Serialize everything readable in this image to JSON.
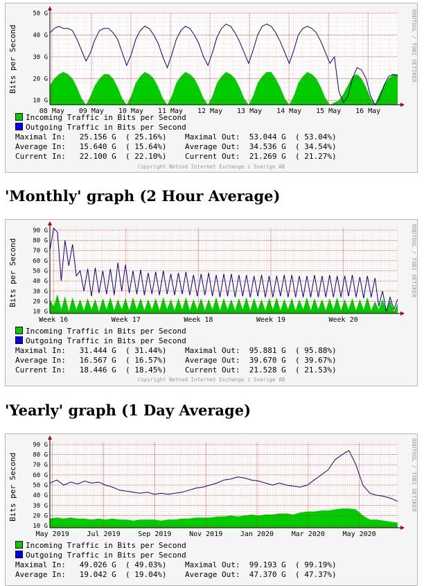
{
  "common": {
    "ylabel": "Bits per Second",
    "side_text": "RRDTOOL / TOBI OETIKER",
    "legend_in": "Incoming Traffic in Bits per Second",
    "legend_out": "Outgoing Traffic in Bits per Second",
    "copyright": "Copyright Netnod Internet Exchange i Sverige AB",
    "colors": {
      "in": "#00cc00",
      "out": "#0000ff",
      "grid": "#ff0000",
      "plot_bg": "#ffffff",
      "panel_bg": "#f5f5f5"
    }
  },
  "headings": {
    "monthly": "'Monthly' graph (2 Hour Average)",
    "yearly": "'Yearly' graph (1 Day Average)"
  },
  "graphs": [
    {
      "id": "weekly",
      "stats": [
        [
          "Maximal In:",
          "25.156 G",
          "( 25.16%)",
          "Maximal Out:",
          "53.044 G",
          "( 53.04%)"
        ],
        [
          "Average In:",
          "15.640 G",
          "( 15.64%)",
          "Average Out:",
          "34.536 G",
          "( 34.54%)"
        ],
        [
          "Current In:",
          "22.100 G",
          "( 22.10%)",
          "Current Out:",
          "21.269 G",
          "( 21.27%)"
        ]
      ]
    },
    {
      "id": "monthly",
      "stats": [
        [
          "Maximal In:",
          "31.444 G",
          "( 31.44%)",
          "Maximal Out:",
          "95.881 G",
          "( 95.88%)"
        ],
        [
          "Average In:",
          "16.567 G",
          "( 16.57%)",
          "Average Out:",
          "39.670 G",
          "( 39.67%)"
        ],
        [
          "Current In:",
          "18.446 G",
          "( 18.45%)",
          "Current Out:",
          "21.528 G",
          "( 21.53%)"
        ]
      ]
    },
    {
      "id": "yearly",
      "stats": [
        [
          "Maximal In:",
          "49.026 G",
          "( 49.03%)",
          "Maximal Out:",
          "99.193 G",
          "( 99.19%)"
        ],
        [
          "Average In:",
          "19.042 G",
          "( 19.04%)",
          "Average Out:",
          "47.370 G",
          "( 47.37%)"
        ]
      ]
    }
  ],
  "chart_data": [
    {
      "type": "area",
      "ylim": [
        8,
        50
      ],
      "yticks": [
        "10 G",
        "20 G",
        "30 G",
        "40 G",
        "50 G"
      ],
      "ytick_values": [
        10,
        20,
        30,
        40,
        50
      ],
      "x_ticks": [
        "08 May",
        "09 May",
        "10 May",
        "11 May",
        "12 May",
        "13 May",
        "14 May",
        "15 May",
        "16 May"
      ],
      "grid": true,
      "series": [
        {
          "name": "Incoming Traffic in Bits per Second",
          "kind": "area",
          "values": [
            17,
            20,
            22,
            23,
            22,
            20,
            16,
            11,
            8,
            12,
            17,
            20,
            22,
            22,
            20,
            16,
            11,
            8,
            12,
            18,
            21,
            23,
            22,
            20,
            16,
            11,
            8,
            12,
            18,
            21,
            23,
            22,
            20,
            16,
            11,
            8,
            12,
            18,
            21,
            23,
            22,
            20,
            16,
            11,
            8,
            12,
            18,
            21,
            23,
            23,
            20,
            16,
            11,
            8,
            12,
            18,
            21,
            23,
            22,
            20,
            16,
            11,
            8,
            9,
            10,
            13,
            17,
            21,
            22,
            20,
            16,
            11,
            8,
            13,
            17,
            20,
            22,
            22
          ]
        },
        {
          "name": "Outgoing Traffic in Bits per Second",
          "kind": "line",
          "values": [
            41,
            43,
            44,
            43,
            43,
            42,
            38,
            33,
            28,
            32,
            38,
            42,
            43,
            43,
            41,
            38,
            32,
            26,
            31,
            38,
            42,
            44,
            43,
            40,
            36,
            30,
            25,
            31,
            38,
            42,
            44,
            43,
            40,
            36,
            30,
            26,
            32,
            39,
            43,
            45,
            44,
            41,
            37,
            32,
            27,
            33,
            40,
            44,
            45,
            44,
            41,
            37,
            32,
            27,
            33,
            40,
            43,
            44,
            43,
            41,
            37,
            32,
            27,
            30,
            14,
            9,
            12,
            20,
            25,
            24,
            20,
            12,
            8,
            11,
            17,
            21,
            22,
            21
          ]
        }
      ]
    },
    {
      "type": "area",
      "ylim": [
        8,
        92
      ],
      "yticks": [
        "10 G",
        "20 G",
        "30 G",
        "40 G",
        "50 G",
        "60 G",
        "70 G",
        "80 G",
        "90 G"
      ],
      "ytick_values": [
        10,
        20,
        30,
        40,
        50,
        60,
        70,
        80,
        90
      ],
      "x_ticks": [
        "Week 16",
        "Week 17",
        "Week 18",
        "Week 19",
        "Week 20"
      ],
      "grid": true,
      "series": [
        {
          "name": "Incoming Traffic in Bits per Second",
          "kind": "area",
          "values": [
            22,
            15,
            27,
            12,
            25,
            10,
            24,
            12,
            22,
            11,
            23,
            12,
            22,
            10,
            23,
            12,
            24,
            11,
            22,
            12,
            23,
            11,
            24,
            12,
            23,
            11,
            22,
            12,
            23,
            11,
            24,
            12,
            22,
            11,
            23,
            12,
            24,
            11,
            22,
            12,
            23,
            11,
            22,
            12,
            24,
            11,
            23,
            12,
            22,
            11,
            23,
            12,
            24,
            11,
            23,
            12,
            22,
            11,
            23,
            12,
            24,
            11,
            22,
            12,
            23,
            11,
            22,
            12,
            24,
            11,
            23,
            12,
            22,
            11,
            23,
            12,
            24,
            11,
            22,
            12,
            23,
            11,
            22,
            12,
            24,
            11,
            20,
            12,
            22,
            11,
            21,
            10,
            18
          ]
        },
        {
          "name": "Outgoing Traffic in Bits per Second",
          "kind": "line",
          "values": [
            70,
            92,
            88,
            40,
            80,
            55,
            76,
            45,
            50,
            30,
            52,
            25,
            53,
            28,
            50,
            27,
            52,
            26,
            58,
            30,
            56,
            28,
            50,
            27,
            51,
            26,
            48,
            27,
            49,
            26,
            50,
            27,
            47,
            26,
            48,
            27,
            49,
            26,
            46,
            25,
            47,
            26,
            48,
            25,
            46,
            24,
            47,
            25,
            47,
            24,
            46,
            25,
            46,
            24,
            45,
            25,
            46,
            24,
            45,
            24,
            45,
            25,
            46,
            24,
            46,
            24,
            45,
            24,
            45,
            24,
            46,
            24,
            45,
            24,
            46,
            24,
            45,
            24,
            45,
            25,
            46,
            24,
            44,
            23,
            45,
            24,
            43,
            15,
            30,
            10,
            24,
            12,
            22
          ]
        }
      ]
    },
    {
      "type": "area",
      "ylim": [
        8,
        92
      ],
      "yticks": [
        "10 G",
        "20 G",
        "30 G",
        "40 G",
        "50 G",
        "60 G",
        "70 G",
        "80 G",
        "90 G"
      ],
      "ytick_values": [
        10,
        20,
        30,
        40,
        50,
        60,
        70,
        80,
        90
      ],
      "x_ticks": [
        "May 2019",
        "Jul 2019",
        "Sep 2019",
        "Nov 2019",
        "Jan 2020",
        "Mar 2020",
        "May 2020"
      ],
      "grid": true,
      "series": [
        {
          "name": "Incoming Traffic in Bits per Second",
          "kind": "area",
          "values": [
            17,
            18,
            17,
            18,
            17,
            17,
            16,
            17,
            16,
            17,
            16,
            16,
            15,
            16,
            16,
            16,
            15,
            16,
            16,
            17,
            17,
            18,
            18,
            18,
            19,
            19,
            20,
            19,
            20,
            21,
            20,
            21,
            21,
            22,
            22,
            21,
            23,
            24,
            24,
            25,
            25,
            26,
            27,
            27,
            26,
            20,
            16,
            16,
            15,
            14,
            13
          ]
        },
        {
          "name": "Outgoing Traffic in Bits per Second",
          "kind": "line",
          "values": [
            52,
            55,
            50,
            53,
            51,
            54,
            52,
            53,
            50,
            48,
            45,
            44,
            43,
            42,
            43,
            41,
            42,
            41,
            42,
            43,
            45,
            47,
            48,
            50,
            52,
            55,
            56,
            58,
            57,
            55,
            54,
            52,
            50,
            52,
            50,
            49,
            48,
            50,
            55,
            60,
            65,
            75,
            80,
            84,
            70,
            50,
            42,
            40,
            39,
            37,
            34
          ]
        }
      ]
    }
  ]
}
